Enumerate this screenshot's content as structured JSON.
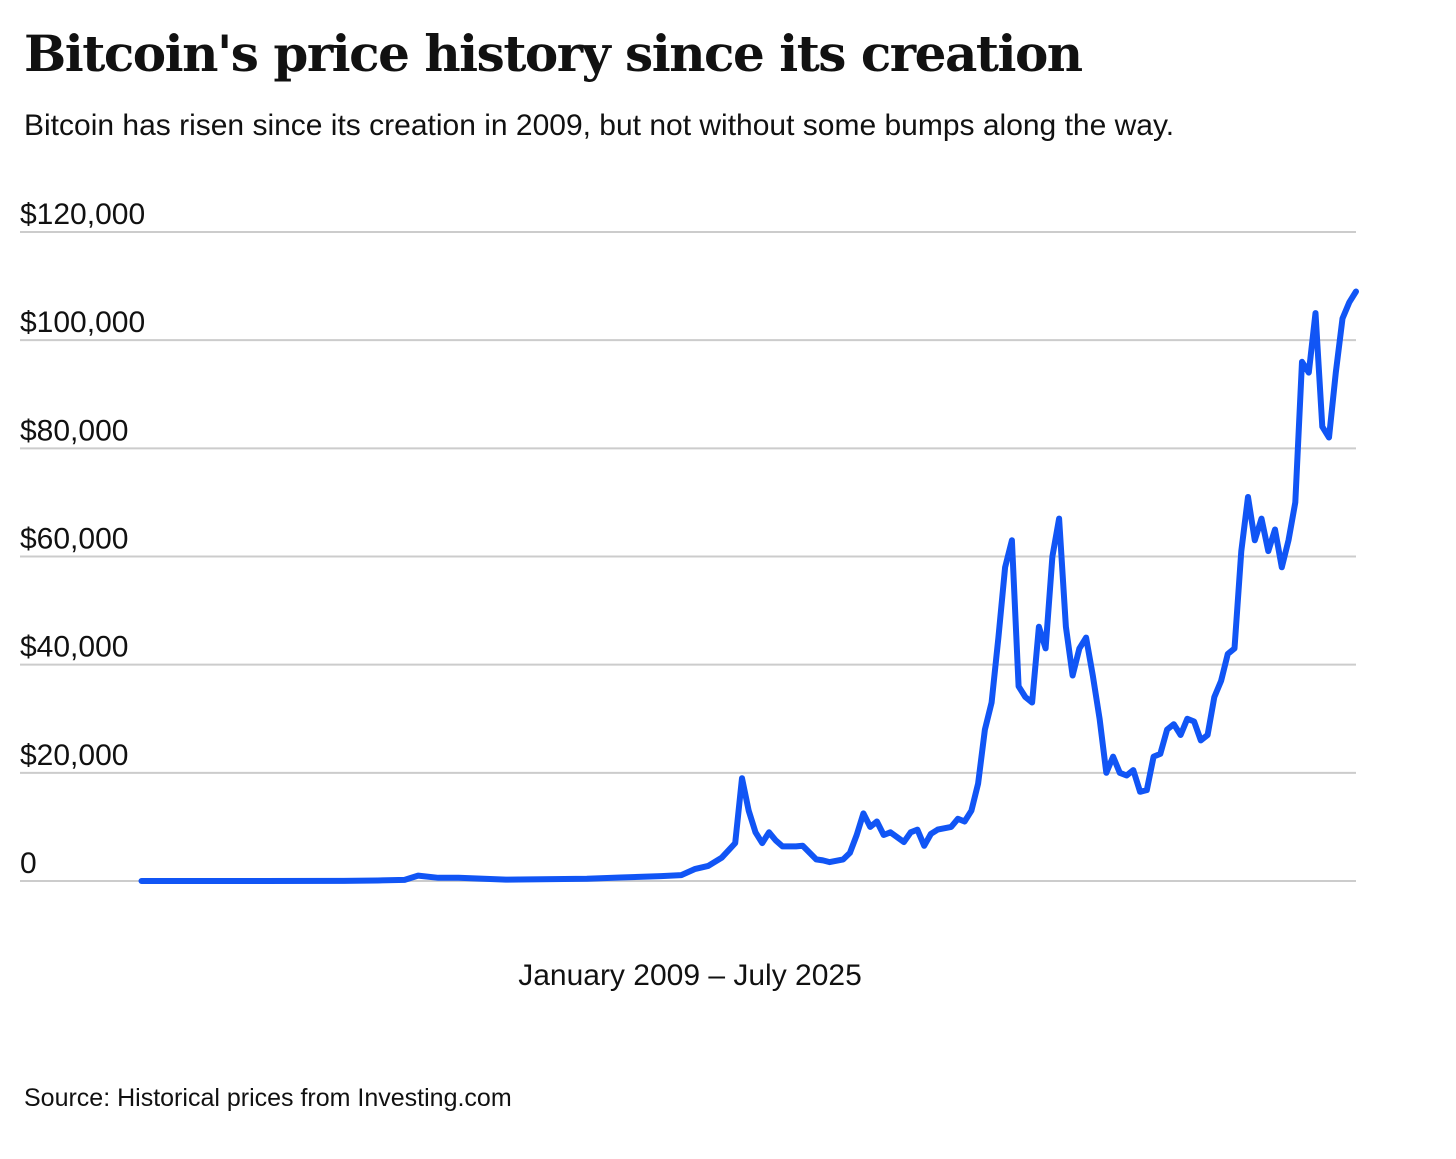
{
  "chart_data": {
    "type": "line",
    "title": "Bitcoin's price history since its creation",
    "subtitle": "Bitcoin has risen since its creation in 2009, but not without some bumps along the way.",
    "xlabel": "January 2009 – July 2025",
    "ylabel": "",
    "ylim": [
      0,
      120000
    ],
    "xlim": [
      "2009-01",
      "2025-07"
    ],
    "y_ticks": [
      0,
      20000,
      40000,
      60000,
      80000,
      100000,
      120000
    ],
    "y_tick_labels": [
      "0",
      "$20,000",
      "$40,000",
      "$60,000",
      "$80,000",
      "$100,000",
      "$120,000"
    ],
    "grid": true,
    "line_color": "#1155f5",
    "grid_color": "#cccccc",
    "source": "Source: Historical prices from Investing.com",
    "series": [
      {
        "x": [
          "2010-07",
          "2011-01",
          "2012-01",
          "2013-01",
          "2013-06",
          "2013-10",
          "2013-12",
          "2014-03",
          "2014-06",
          "2015-01",
          "2016-01",
          "2016-06",
          "2016-12",
          "2017-03",
          "2017-05",
          "2017-07",
          "2017-09",
          "2017-11",
          "2017-12",
          "2018-01",
          "2018-02",
          "2018-03",
          "2018-04",
          "2018-05",
          "2018-06",
          "2018-08",
          "2018-09",
          "2018-11",
          "2018-12",
          "2019-01",
          "2019-03",
          "2019-04",
          "2019-05",
          "2019-06",
          "2019-07",
          "2019-08",
          "2019-09",
          "2019-10",
          "2019-12",
          "2020-01",
          "2020-02",
          "2020-03",
          "2020-04",
          "2020-05",
          "2020-07",
          "2020-08",
          "2020-09",
          "2020-10",
          "2020-11",
          "2020-12",
          "2021-01",
          "2021-02",
          "2021-03",
          "2021-04",
          "2021-05",
          "2021-06",
          "2021-07",
          "2021-08",
          "2021-09",
          "2021-10",
          "2021-11",
          "2021-12",
          "2022-01",
          "2022-02",
          "2022-03",
          "2022-04",
          "2022-05",
          "2022-06",
          "2022-07",
          "2022-08",
          "2022-09",
          "2022-10",
          "2022-11",
          "2022-12",
          "2023-01",
          "2023-02",
          "2023-03",
          "2023-04",
          "2023-05",
          "2023-06",
          "2023-07",
          "2023-08",
          "2023-09",
          "2023-10",
          "2023-11",
          "2023-12",
          "2024-01",
          "2024-02",
          "2024-03",
          "2024-04",
          "2024-05",
          "2024-06",
          "2024-07",
          "2024-08",
          "2024-09",
          "2024-10",
          "2024-11",
          "2024-12",
          "2025-01",
          "2025-02",
          "2025-03",
          "2025-04",
          "2025-05",
          "2025-06",
          "2025-07"
        ],
        "y": [
          0,
          0,
          5,
          20,
          100,
          200,
          1000,
          600,
          600,
          250,
          400,
          650,
          900,
          1100,
          2200,
          2800,
          4300,
          7000,
          19000,
          13000,
          9000,
          7000,
          9000,
          7500,
          6400,
          6400,
          6500,
          4000,
          3800,
          3500,
          4000,
          5200,
          8500,
          12500,
          10000,
          11000,
          8500,
          9000,
          7200,
          9000,
          9500,
          6500,
          8700,
          9500,
          10000,
          11500,
          11000,
          13000,
          18000,
          28000,
          33000,
          45000,
          58000,
          63000,
          36000,
          34000,
          33000,
          47000,
          43000,
          60000,
          67000,
          47000,
          38000,
          43000,
          45000,
          38000,
          30000,
          20000,
          23000,
          20000,
          19500,
          20500,
          16500,
          16800,
          23000,
          23500,
          28000,
          29000,
          27000,
          30000,
          29500,
          26000,
          27000,
          34000,
          37000,
          42000,
          43000,
          61000,
          71000,
          63000,
          67000,
          61000,
          65000,
          58000,
          63000,
          70000,
          96000,
          94000,
          105000,
          84000,
          82000,
          94000,
          104000,
          107000,
          109000
        ]
      }
    ]
  }
}
